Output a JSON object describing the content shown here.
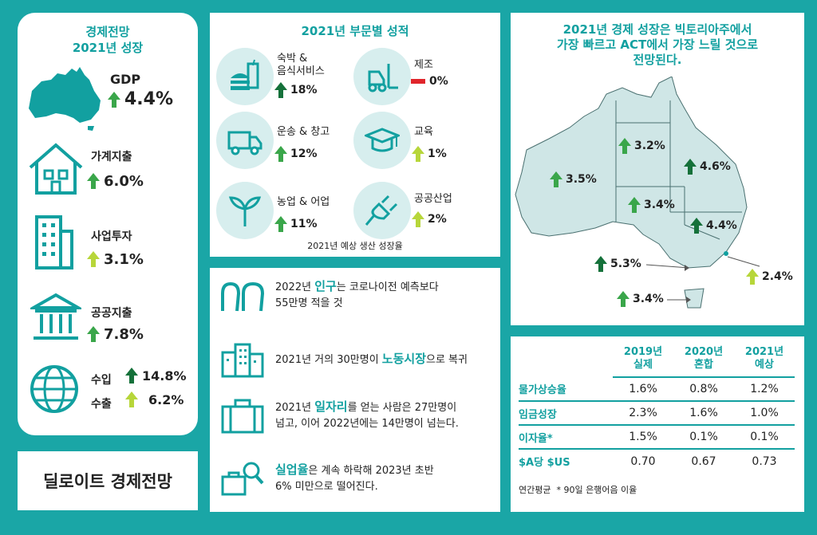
{
  "left": {
    "title_line1": "경제전망",
    "title_line2": "2021년 성장",
    "gdp_label": "GDP",
    "gdp_value": "4.4%",
    "household_label": "가계지출",
    "household_value": "6.0%",
    "business_label": "사업투자",
    "business_value": "3.1%",
    "public_label": "공공지출",
    "public_value": "7.8%",
    "import_label": "수입",
    "import_value": "14.8%",
    "export_label": "수출",
    "export_value": "6.2%",
    "footer": "딜로이트 경제전망"
  },
  "sectors": {
    "title": "2021년 부문별 성적",
    "items": [
      {
        "label": "숙박 &\n음식서비스",
        "value": "18%"
      },
      {
        "label": "제조",
        "value": "0%"
      },
      {
        "label": "운송 & 창고",
        "value": "12%"
      },
      {
        "label": "교육",
        "value": "1%"
      },
      {
        "label": "농업 & 어업",
        "value": "11%"
      },
      {
        "label": "공공산업",
        "value": "2%"
      }
    ],
    "footnote": "2021년 예상 생산 성장율"
  },
  "stats": {
    "items": [
      {
        "pre": "2022년 ",
        "highlight": "인구",
        "post": "는 코로나이전 예측보다",
        "line2": "55만명 적을 것"
      },
      {
        "pre": "2021년 거의 30만명이 ",
        "highlight": "노동시장",
        "post": "으로 복귀",
        "line2": ""
      },
      {
        "pre": "2021년 ",
        "highlight": "일자리",
        "post": "를 얻는 사람은 27만명이",
        "line2": "넘고, 이어 2022년에는 14만명이 넘는다."
      },
      {
        "pre": "",
        "highlight": "실업율",
        "post": "은 계속 하락해 2023년 초반",
        "line2": "6% 미만으로 떨어진다."
      }
    ]
  },
  "map": {
    "title_line1": "2021년 경제 성장은 빅토리아주에서",
    "title_line2": "가장 빠르고 ACT에서 가장 느릴 것으로",
    "title_line3": "전망된다.",
    "wa": "3.5%",
    "nt": "3.2%",
    "qld": "4.6%",
    "sa": "3.4%",
    "nsw": "4.4%",
    "vic": "5.3%",
    "act": "2.4%",
    "tas": "3.4%"
  },
  "table": {
    "headers": [
      [
        "2019년",
        "실제"
      ],
      [
        "2020년",
        "혼합"
      ],
      [
        "2021년",
        "예상"
      ]
    ],
    "rows": [
      {
        "label": "물가상승율",
        "values": [
          "1.6%",
          "0.8%",
          "1.2%"
        ]
      },
      {
        "label": "임금성장",
        "values": [
          "2.3%",
          "1.6%",
          "1.0%"
        ]
      },
      {
        "label": "이자율*",
        "values": [
          "1.5%",
          "0.1%",
          "0.1%"
        ]
      },
      {
        "label": "$A당 $US",
        "values": [
          "0.70",
          "0.67",
          "0.73"
        ]
      }
    ],
    "footnote": "연간평균  * 90일 은행어음 이율"
  },
  "colors": {
    "teal": "#1aa6a6",
    "arrow_green": "#3aa64a",
    "arrow_dark": "#15713a",
    "arrow_lime": "#b7d63a",
    "arrow_red": "#e0252b"
  }
}
